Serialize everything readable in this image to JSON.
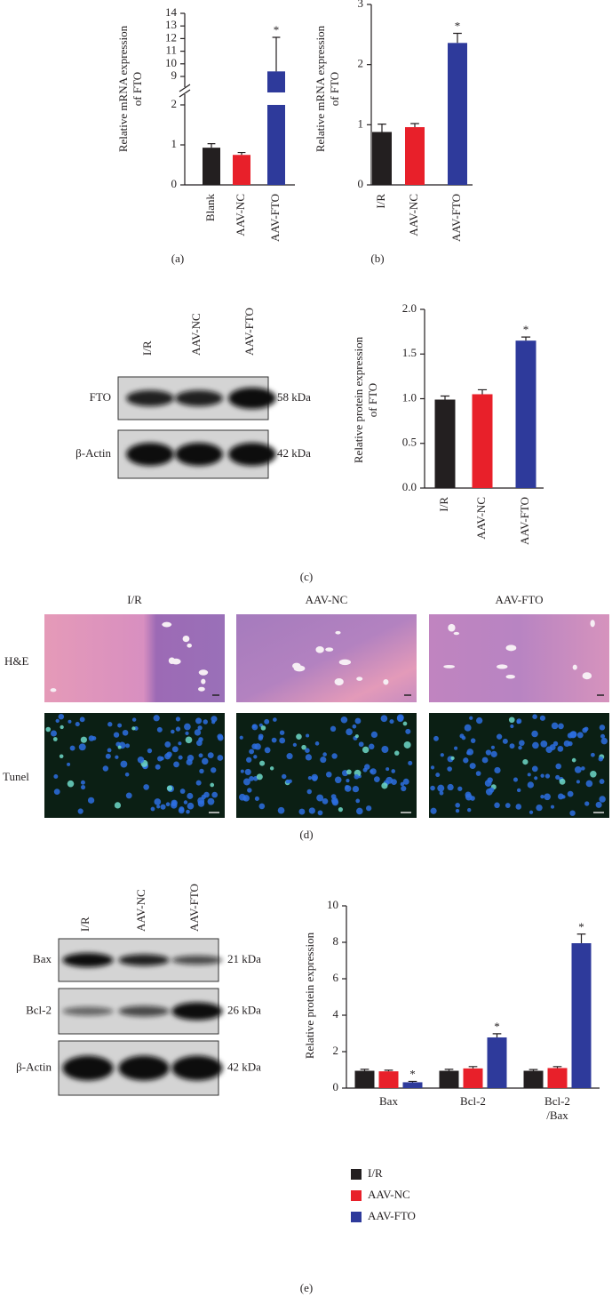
{
  "chart_data": [
    {
      "type": "bar",
      "ylabel": [
        "Relative mRNA expression",
        "of FTO"
      ],
      "categories": [
        "Blank",
        "AAV-NC",
        "AAV-FTO"
      ],
      "values": [
        0.93,
        0.75,
        9.4
      ],
      "errors": [
        0.1,
        0.06,
        2.7
      ],
      "colors": [
        "#231f20",
        "#e8202a",
        "#2e3a9b"
      ],
      "ylim": [
        0,
        14
      ],
      "ybreak": [
        2,
        9
      ],
      "yticks": [
        0,
        1,
        2,
        9,
        10,
        11,
        12,
        13,
        14
      ],
      "annotations": [
        {
          "category": "AAV-FTO",
          "text": "*"
        }
      ]
    },
    {
      "type": "bar",
      "ylabel": [
        "Relative mRNA expression",
        "of FTO"
      ],
      "categories": [
        "I/R",
        "AAV-NC",
        "AAV-FTO"
      ],
      "values": [
        0.88,
        0.96,
        2.36
      ],
      "errors": [
        0.13,
        0.06,
        0.16
      ],
      "colors": [
        "#231f20",
        "#e8202a",
        "#2e3a9b"
      ],
      "ylim": [
        0,
        3
      ],
      "yticks": [
        0,
        1,
        2,
        3
      ],
      "annotations": [
        {
          "category": "AAV-FTO",
          "text": "*"
        }
      ]
    },
    {
      "type": "bar",
      "ylabel": [
        "Relative protein expression",
        "of FTO"
      ],
      "categories": [
        "I/R",
        "AAV-NC",
        "AAV-FTO"
      ],
      "values": [
        0.99,
        1.05,
        1.65
      ],
      "errors": [
        0.04,
        0.05,
        0.04
      ],
      "colors": [
        "#231f20",
        "#e8202a",
        "#2e3a9b"
      ],
      "ylim": [
        0,
        2
      ],
      "yticks": [
        {
          "value": 0,
          "label": "0.0"
        },
        {
          "value": 0.5,
          "label": "0.5"
        },
        {
          "value": 1,
          "label": "1.0"
        },
        {
          "value": 1.5,
          "label": "1.5"
        },
        {
          "value": 2,
          "label": "2.0"
        }
      ],
      "annotations": [
        {
          "category": "AAV-FTO",
          "text": "*"
        }
      ]
    },
    {
      "type": "grouped_bar",
      "ylabel": [
        "Relative protein expression"
      ],
      "categories": [
        "Bax",
        "Bcl-2",
        "Bcl-2\n/Bax"
      ],
      "series": [
        {
          "name": "I/R",
          "color": "#231f20",
          "values": [
            0.95,
            0.95,
            0.95
          ],
          "errors": [
            0.08,
            0.08,
            0.07
          ]
        },
        {
          "name": "AAV-NC",
          "color": "#e8202a",
          "values": [
            0.92,
            1.08,
            1.1
          ],
          "errors": [
            0.06,
            0.1,
            0.08
          ]
        },
        {
          "name": "AAV-FTO",
          "color": "#2e3a9b",
          "values": [
            0.32,
            2.78,
            7.95
          ],
          "errors": [
            0.05,
            0.2,
            0.5
          ]
        }
      ],
      "ylim": [
        0,
        10
      ],
      "yticks": [
        0,
        2,
        4,
        6,
        8,
        10
      ],
      "annotations": [
        {
          "series": "AAV-FTO",
          "category": "Bax",
          "text": "*"
        },
        {
          "series": "AAV-FTO",
          "category": "Bcl-2",
          "text": "*"
        },
        {
          "series": "AAV-FTO",
          "category": "Bcl-2\n/Bax",
          "text": "*"
        }
      ]
    }
  ],
  "blots": [
    {
      "lanes": [
        "I/R",
        "AAV-NC",
        "AAV-FTO"
      ],
      "rows": [
        {
          "label": "FTO",
          "size": "58 kDa"
        },
        {
          "label": "β-Actin",
          "size": "42 kDa"
        }
      ]
    },
    {
      "lanes": [
        "I/R",
        "AAV-NC",
        "AAV-FTO"
      ],
      "rows": [
        {
          "label": "Bax",
          "size": "21 kDa"
        },
        {
          "label": "Bcl-2",
          "size": "26 kDa"
        },
        {
          "label": "β-Actin",
          "size": "42 kDa"
        }
      ]
    }
  ],
  "histology": {
    "columns": [
      "I/R",
      "AAV-NC",
      "AAV-FTO"
    ],
    "rows": [
      "H&E",
      "Tunel"
    ]
  },
  "captions": [
    "(a)",
    "(b)",
    "(c)",
    "(d)",
    "(e)"
  ]
}
